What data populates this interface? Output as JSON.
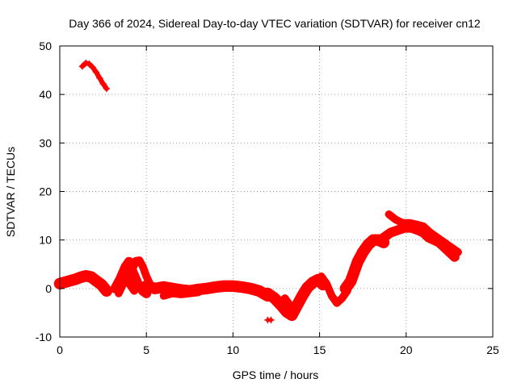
{
  "chart_data": {
    "type": "scatter",
    "title": "Day 366 of 2024, Sidereal Day-to-day VTEC variation (SDTVAR) for receiver cn12",
    "xlabel": "GPS time / hours",
    "ylabel": "SDTVAR / TECUs",
    "xlim": [
      0,
      25
    ],
    "ylim": [
      -10,
      50
    ],
    "xticks": [
      0,
      5,
      10,
      15,
      20,
      25
    ],
    "yticks": [
      -10,
      0,
      10,
      20,
      30,
      40,
      50
    ],
    "xtick_labels": [
      "0",
      "5",
      "10",
      "15",
      "20",
      "25"
    ],
    "ytick_labels": [
      "-10",
      "0",
      "10",
      "20",
      "30",
      "40",
      "50"
    ],
    "grid": true,
    "legend": "none",
    "marker": "plus",
    "color": "#ff0000",
    "series": [
      {
        "name": "arc-early-low",
        "band": 1.2,
        "x": [
          0.0,
          0.3,
          0.6,
          0.9,
          1.2,
          1.5,
          1.8,
          2.1,
          2.4,
          2.7
        ],
        "y": [
          1.0,
          1.3,
          1.6,
          1.9,
          2.3,
          2.6,
          2.4,
          1.6,
          0.8,
          -0.5
        ]
      },
      {
        "name": "arc-early-high",
        "band": 0.5,
        "x": [
          1.3,
          1.5,
          1.7,
          1.9,
          2.1,
          2.3,
          2.5,
          2.7
        ],
        "y": [
          45.8,
          46.5,
          46.3,
          45.6,
          44.6,
          43.4,
          42.2,
          41.2
        ]
      },
      {
        "name": "arc-wave-a",
        "band": 1.0,
        "x": [
          3.2,
          3.5,
          3.8,
          4.0,
          4.2,
          4.5,
          4.8,
          5.0
        ],
        "y": [
          0.0,
          2.0,
          4.5,
          5.5,
          3.5,
          1.0,
          -0.5,
          -1.0
        ]
      },
      {
        "name": "arc-wave-b",
        "band": 0.8,
        "x": [
          4.0,
          4.2,
          4.4,
          4.6,
          4.8,
          5.0,
          5.2
        ],
        "y": [
          1.5,
          4.0,
          5.7,
          5.8,
          4.5,
          2.5,
          1.0
        ]
      },
      {
        "name": "arc-wave-c",
        "band": 0.8,
        "x": [
          3.4,
          3.6,
          3.8,
          4.0,
          4.3
        ],
        "y": [
          -1.0,
          0.5,
          2.0,
          1.0,
          -0.5
        ]
      },
      {
        "name": "arc-mid",
        "band": 1.2,
        "x": [
          5.0,
          5.5,
          6.0,
          6.5,
          7.0,
          7.5,
          8.0,
          8.5,
          9.0,
          9.5,
          10.0,
          10.5,
          11.0,
          11.5,
          12.0
        ],
        "y": [
          0.5,
          0.0,
          0.3,
          0.0,
          -0.3,
          -0.5,
          -0.2,
          0.0,
          0.3,
          0.5,
          0.5,
          0.3,
          0.0,
          -0.5,
          -1.5
        ]
      },
      {
        "name": "arc-mid-low",
        "band": 0.8,
        "x": [
          6.0,
          6.5,
          7.0,
          7.5,
          8.0
        ],
        "y": [
          -1.5,
          -1.0,
          -1.2,
          -1.0,
          -0.8
        ]
      },
      {
        "name": "arc-dip",
        "band": 1.2,
        "x": [
          12.0,
          12.4,
          12.8,
          13.1,
          13.4,
          13.7,
          14.0,
          14.3,
          14.6,
          14.9,
          15.2
        ],
        "y": [
          -1.0,
          -2.0,
          -3.5,
          -4.8,
          -5.5,
          -3.5,
          -1.5,
          0.2,
          1.2,
          1.8,
          0.8
        ]
      },
      {
        "name": "arc-dip-b",
        "band": 0.8,
        "x": [
          13.0,
          13.4,
          13.8,
          14.2,
          14.6,
          15.0
        ],
        "y": [
          -2.0,
          -4.0,
          -2.5,
          -0.5,
          1.0,
          1.5
        ]
      },
      {
        "name": "arc-dip-c",
        "band": 0.8,
        "x": [
          15.1,
          15.4,
          15.7,
          16.0,
          16.3,
          16.6
        ],
        "y": [
          2.5,
          1.0,
          -1.5,
          -3.0,
          -2.0,
          -0.5
        ]
      },
      {
        "name": "arc-point",
        "band": 0.4,
        "x": [
          12.0,
          12.2
        ],
        "y": [
          -6.5,
          -6.5
        ]
      },
      {
        "name": "arc-rise",
        "band": 1.2,
        "x": [
          16.5,
          16.8,
          17.0,
          17.2,
          17.5,
          17.8,
          18.1,
          18.4,
          18.7
        ],
        "y": [
          0.0,
          1.5,
          3.5,
          5.5,
          7.5,
          9.0,
          10.0,
          10.0,
          9.5
        ]
      },
      {
        "name": "arc-peak",
        "band": 1.0,
        "x": [
          18.7,
          19.1,
          19.5,
          19.9,
          20.3,
          20.7,
          21.0,
          21.3,
          21.6,
          21.9,
          22.2,
          22.5,
          22.8
        ],
        "y": [
          10.5,
          11.5,
          12.0,
          12.5,
          12.5,
          12.0,
          11.5,
          10.5,
          10.0,
          9.5,
          8.5,
          7.5,
          6.5
        ]
      },
      {
        "name": "arc-peak-high",
        "band": 0.8,
        "x": [
          19.0,
          19.4,
          19.8,
          20.2,
          20.6,
          21.0,
          21.4,
          21.8,
          22.2,
          22.6,
          23.0
        ],
        "y": [
          15.3,
          14.2,
          13.5,
          13.5,
          13.2,
          12.8,
          11.5,
          10.5,
          9.5,
          8.5,
          7.5
        ]
      }
    ]
  }
}
